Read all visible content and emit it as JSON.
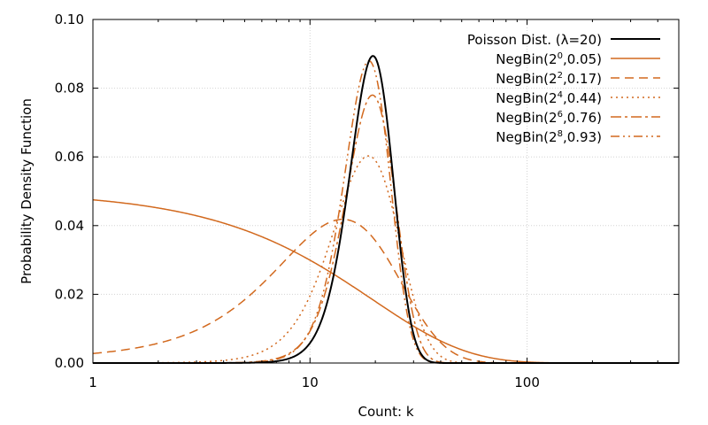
{
  "chart_data": {
    "type": "line",
    "title": "",
    "xlabel": "Count: k",
    "ylabel": "Probability Density Function",
    "xscale": "log",
    "xlim": [
      1,
      500
    ],
    "ylim": [
      0,
      0.1
    ],
    "x_ticks": [
      1,
      10,
      100
    ],
    "x_tick_labels": [
      "1",
      "10",
      "100"
    ],
    "y_ticks": [
      0,
      0.02,
      0.04,
      0.06,
      0.08,
      0.1
    ],
    "y_tick_labels": [
      "0.00",
      "0.02",
      "0.04",
      "0.06",
      "0.08",
      "0.10"
    ],
    "grid": true,
    "legend_position": "top-right",
    "colors": {
      "poisson": "#000000",
      "negbin": "#d2691e"
    },
    "series": [
      {
        "kind": "poisson",
        "lambda": 20,
        "label_base": "Poisson Dist. (λ=20)",
        "label_exp": "",
        "label_tail": "",
        "color": "#000000",
        "dash": "solid"
      },
      {
        "kind": "negbin",
        "r": 1,
        "p": 0.05,
        "label_base": "NegBin(2",
        "label_exp": "0",
        "label_tail": ",0.05)",
        "color": "#d2691e",
        "dash": "solid"
      },
      {
        "kind": "negbin",
        "r": 4,
        "p": 0.17,
        "label_base": "NegBin(2",
        "label_exp": "2",
        "label_tail": ",0.17)",
        "color": "#d2691e",
        "dash": "dashed"
      },
      {
        "kind": "negbin",
        "r": 16,
        "p": 0.44,
        "label_base": "NegBin(2",
        "label_exp": "4",
        "label_tail": ",0.44)",
        "color": "#d2691e",
        "dash": "dotted"
      },
      {
        "kind": "negbin",
        "r": 64,
        "p": 0.76,
        "label_base": "NegBin(2",
        "label_exp": "6",
        "label_tail": ",0.76)",
        "color": "#d2691e",
        "dash": "dash-dot"
      },
      {
        "kind": "negbin",
        "r": 256,
        "p": 0.93,
        "label_base": "NegBin(2",
        "label_exp": "8",
        "label_tail": ",0.93)",
        "color": "#d2691e",
        "dash": "dash-dot-dot"
      }
    ]
  }
}
